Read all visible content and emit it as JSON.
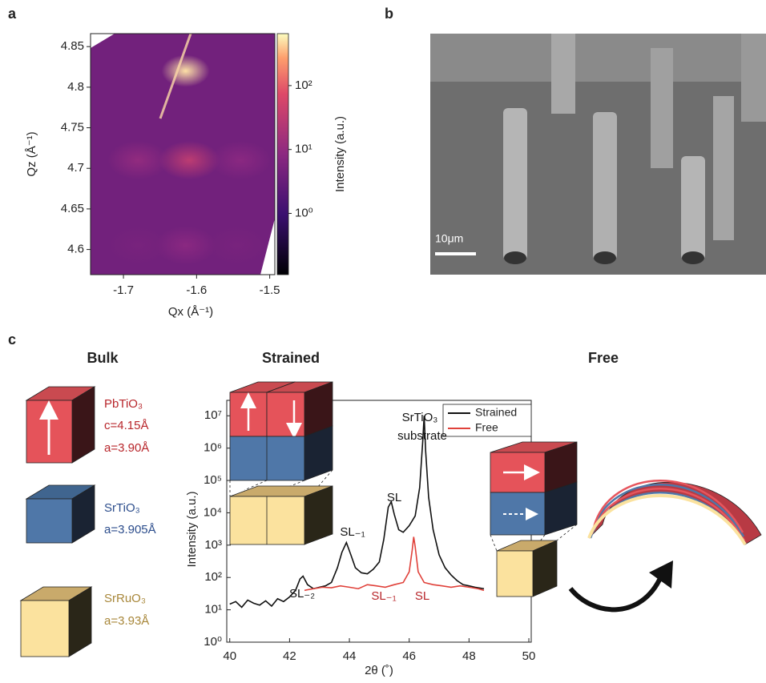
{
  "panels": {
    "a": "a",
    "b": "b",
    "c": "c"
  },
  "scale_bar": "10μm",
  "headers": {
    "bulk": "Bulk",
    "strained": "Strained",
    "free": "Free"
  },
  "bulk": {
    "pto": {
      "name": "PbTiO₃",
      "c": "c=4.15Å",
      "a": "a=3.90Å",
      "color": "#b8262b"
    },
    "sto": {
      "name": "SrTiO₃",
      "a": "a=3.905Å",
      "color": "#2c4d8c"
    },
    "sro": {
      "name": "SrRuO₃",
      "a": "a=3.93Å",
      "color": "#a8873a"
    }
  },
  "chart_data": [
    {
      "type": "heatmap",
      "xlabel": "Qx (Å⁻¹)",
      "ylabel": "Qz (Å⁻¹)",
      "colorbar_label": "Intensity (a.u.)",
      "x": [
        -1.615,
        -1.61,
        -1.68,
        -1.54,
        -1.615,
        -1.68,
        -1.545
      ],
      "y": [
        4.82,
        4.71,
        4.71,
        4.71,
        4.605,
        4.605,
        4.605
      ],
      "values": [
        500,
        30,
        10,
        8,
        8,
        5,
        5
      ],
      "xlim": [
        -1.745,
        -1.493
      ],
      "xticks": [
        -1.7,
        -1.6,
        -1.5
      ],
      "ylim": [
        4.569,
        4.866
      ],
      "yticks": [
        4.6,
        4.65,
        4.7,
        4.75,
        4.8,
        4.85
      ],
      "clim": [
        0.11,
        650
      ],
      "color_scale": "log",
      "cticks": [
        {
          "value": 1,
          "label": "10⁰"
        },
        {
          "value": 10,
          "label": "10¹"
        },
        {
          "value": 100,
          "label": "10²"
        }
      ]
    },
    {
      "type": "line",
      "xlabel": "2θ (˚)",
      "ylabel": "Intensity (a.u.)",
      "log_y": true,
      "legend": "upper right",
      "xlim": [
        39.9,
        50.08
      ],
      "xticks": [
        40,
        42,
        44,
        46,
        48,
        50
      ],
      "ylim": [
        1,
        30000000
      ],
      "yticks": [
        {
          "value": 1,
          "label": "10⁰"
        },
        {
          "value": 10,
          "label": "10¹"
        },
        {
          "value": 100,
          "label": "10²"
        },
        {
          "value": 1000,
          "label": "10³"
        },
        {
          "value": 10000,
          "label": "10⁴"
        },
        {
          "value": 100000,
          "label": "10⁵"
        },
        {
          "value": 1000000,
          "label": "10⁶"
        },
        {
          "value": 10000000,
          "label": "10⁷"
        }
      ],
      "series": [
        {
          "name": "Strained",
          "color": "#111111",
          "x": [
            40,
            40.2,
            40.4,
            40.6,
            40.8,
            41,
            41.2,
            41.4,
            41.6,
            41.8,
            42,
            42.2,
            42.35,
            42.45,
            42.6,
            42.8,
            43,
            43.2,
            43.4,
            43.6,
            43.75,
            43.9,
            44.05,
            44.2,
            44.4,
            44.6,
            44.8,
            45,
            45.15,
            45.3,
            45.4,
            45.5,
            45.65,
            45.8,
            46,
            46.2,
            46.35,
            46.45,
            46.5,
            46.55,
            46.65,
            46.8,
            47,
            47.2,
            47.4,
            47.6,
            47.8,
            48,
            48.2,
            48.5
          ],
          "values": [
            15,
            18,
            12,
            20,
            16,
            14,
            19,
            13,
            22,
            18,
            25,
            40,
            90,
            110,
            60,
            45,
            50,
            55,
            70,
            200,
            600,
            1200,
            500,
            200,
            140,
            130,
            180,
            300,
            1500,
            15000,
            22000,
            9000,
            3000,
            2500,
            4000,
            8000,
            60000,
            1500000,
            10000000,
            800000,
            30000,
            3000,
            500,
            200,
            120,
            80,
            60,
            55,
            50,
            45
          ]
        },
        {
          "name": "Free",
          "color": "#e0413a",
          "x": [
            42.5,
            42.8,
            43.1,
            43.4,
            43.7,
            44,
            44.3,
            44.6,
            44.9,
            45.2,
            45.5,
            45.8,
            46,
            46.1,
            46.15,
            46.2,
            46.3,
            46.5,
            46.8,
            47.1,
            47.4,
            47.7,
            48,
            48.3,
            48.5
          ],
          "values": [
            40,
            45,
            50,
            48,
            55,
            50,
            45,
            60,
            55,
            50,
            60,
            70,
            150,
            700,
            1800,
            900,
            150,
            70,
            60,
            55,
            50,
            55,
            50,
            45,
            40
          ]
        }
      ],
      "annotations": [
        {
          "text": "SL₋₂",
          "color": "#111111"
        },
        {
          "text": "SL₋₁",
          "color": "#111111"
        },
        {
          "text": "SL",
          "color": "#111111"
        },
        {
          "text": "SrTiO₃",
          "color": "#111111"
        },
        {
          "text": "substrate",
          "color": "#111111"
        },
        {
          "text": "SL₋₁",
          "color": "#b8262b"
        },
        {
          "text": "SL",
          "color": "#b8262b"
        }
      ]
    }
  ]
}
